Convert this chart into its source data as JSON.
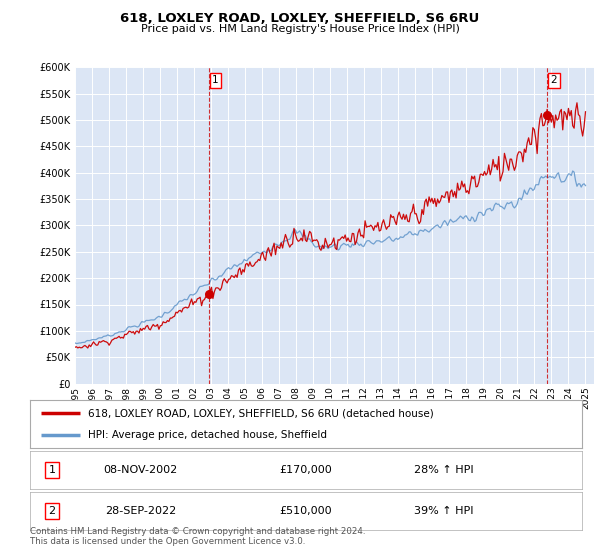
{
  "title": "618, LOXLEY ROAD, LOXLEY, SHEFFIELD, S6 6RU",
  "subtitle": "Price paid vs. HM Land Registry's House Price Index (HPI)",
  "plot_bg_color": "#dce6f5",
  "x_start": 1995.0,
  "x_end": 2025.5,
  "y_min": 0,
  "y_max": 600000,
  "y_ticks": [
    0,
    50000,
    100000,
    150000,
    200000,
    250000,
    300000,
    350000,
    400000,
    450000,
    500000,
    550000,
    600000
  ],
  "sale1_x": 2002.86,
  "sale1_y": 170000,
  "sale1_label": "1",
  "sale2_x": 2022.74,
  "sale2_y": 510000,
  "sale2_label": "2",
  "red_color": "#cc0000",
  "blue_color": "#6699cc",
  "legend_entry1": "618, LOXLEY ROAD, LOXLEY, SHEFFIELD, S6 6RU (detached house)",
  "legend_entry2": "HPI: Average price, detached house, Sheffield",
  "table_row1_num": "1",
  "table_row1_date": "08-NOV-2002",
  "table_row1_price": "£170,000",
  "table_row1_hpi": "28% ↑ HPI",
  "table_row2_num": "2",
  "table_row2_date": "28-SEP-2022",
  "table_row2_price": "£510,000",
  "table_row2_hpi": "39% ↑ HPI",
  "footer": "Contains HM Land Registry data © Crown copyright and database right 2024.\nThis data is licensed under the Open Government Licence v3.0.",
  "x_ticks": [
    1995,
    1996,
    1997,
    1998,
    1999,
    2000,
    2001,
    2002,
    2003,
    2004,
    2005,
    2006,
    2007,
    2008,
    2009,
    2010,
    2011,
    2012,
    2013,
    2014,
    2015,
    2016,
    2017,
    2018,
    2019,
    2020,
    2021,
    2022,
    2023,
    2024,
    2025
  ]
}
